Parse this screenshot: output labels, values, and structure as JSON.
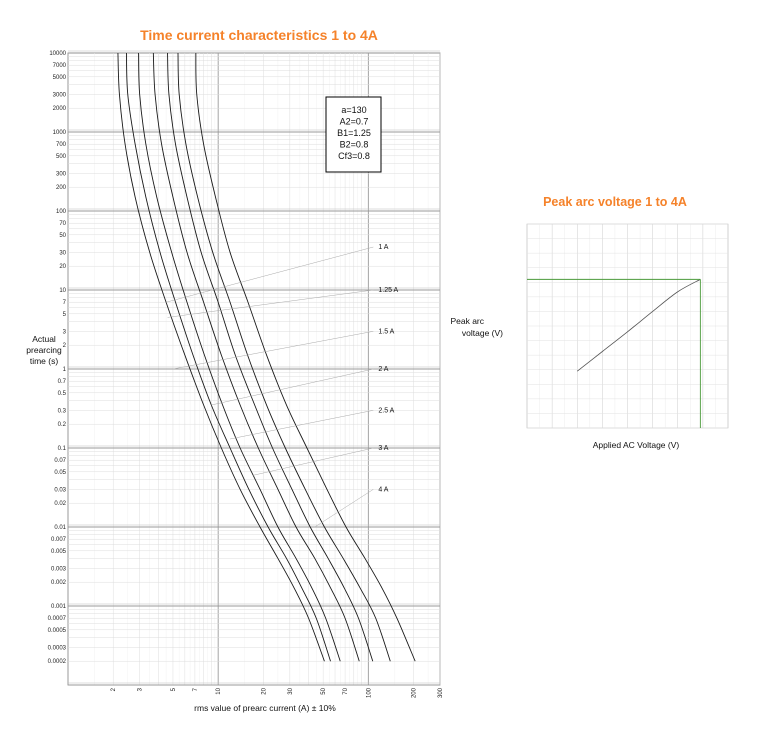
{
  "chart_data": [
    {
      "type": "line",
      "title": "Time current characteristics 1 to 4A",
      "xlabel": "rms value of prearc current (A) ± 10%",
      "ylabel": "Actual prearcing time (s)",
      "xscale": "log",
      "yscale": "log",
      "xlim": [
        1,
        300
      ],
      "ylim": [
        0.0001,
        10000
      ],
      "grid": true,
      "x_ticks": [
        "2",
        "3",
        "5",
        "7",
        "10",
        "20",
        "30",
        "50",
        "70",
        "100",
        "200",
        "300"
      ],
      "y_ticks": [
        "10000",
        "7000",
        "5000",
        "3000",
        "2000",
        "1000",
        "700",
        "500",
        "300",
        "200",
        "100",
        "70",
        "50",
        "30",
        "20",
        "10",
        "7",
        "5",
        "3",
        "2",
        "1",
        "0.7",
        "0.5",
        "0.3",
        "0.2",
        "0.1",
        "0.07",
        "0.05",
        "0.03",
        "0.02",
        "0.01",
        "0.007",
        "0.005",
        "0.003",
        "0.002",
        "0.001",
        "0.0007",
        "0.0005",
        "0.0003",
        "0.0002"
      ],
      "annotation": [
        "a=130",
        "A2=0.7",
        "B1=1.25",
        "B2=0.8",
        "Cf3=0.8"
      ],
      "series": [
        {
          "name": "1 A",
          "x": [
            2.15,
            2.2,
            2.4,
            2.8,
            3.5,
            4.5,
            6,
            8,
            10.5,
            14,
            19,
            25,
            32,
            40,
            51
          ],
          "y": [
            10000,
            3000,
            700,
            150,
            30,
            7,
            1.5,
            0.35,
            0.1,
            0.03,
            0.01,
            0.004,
            0.0017,
            0.0007,
            0.0002
          ]
        },
        {
          "name": "1.25 A",
          "x": [
            2.45,
            2.5,
            2.8,
            3.3,
            4.1,
            5.2,
            6.8,
            9,
            12,
            16,
            21.5,
            28.5,
            36,
            45,
            56
          ],
          "y": [
            10000,
            3000,
            700,
            150,
            30,
            7,
            1.5,
            0.35,
            0.1,
            0.03,
            0.01,
            0.004,
            0.0017,
            0.0007,
            0.0002
          ]
        },
        {
          "name": "1.5 A",
          "x": [
            2.95,
            3.0,
            3.3,
            3.9,
            4.9,
            6.2,
            8.1,
            10.7,
            14,
            19,
            25,
            33,
            42,
            52,
            65
          ],
          "y": [
            10000,
            3000,
            700,
            150,
            30,
            7,
            1.5,
            0.35,
            0.1,
            0.03,
            0.01,
            0.004,
            0.0017,
            0.0007,
            0.0002
          ]
        },
        {
          "name": "2 A",
          "x": [
            3.7,
            3.8,
            4.2,
            5,
            6.2,
            8,
            10.5,
            14,
            18.5,
            25,
            33,
            44,
            56,
            70,
            87
          ],
          "y": [
            10000,
            3000,
            700,
            150,
            30,
            7,
            1.5,
            0.35,
            0.1,
            0.03,
            0.01,
            0.004,
            0.0017,
            0.0007,
            0.0002
          ]
        },
        {
          "name": "2.5 A",
          "x": [
            4.6,
            4.7,
            5.2,
            6.2,
            7.7,
            10,
            13,
            17.5,
            23,
            31,
            41,
            54,
            69,
            86,
            107
          ],
          "y": [
            10000,
            3000,
            700,
            150,
            30,
            7,
            1.5,
            0.35,
            0.1,
            0.03,
            0.01,
            0.004,
            0.0017,
            0.0007,
            0.0002
          ]
        },
        {
          "name": "3 A",
          "x": [
            5.4,
            5.5,
            6.1,
            7.3,
            9.2,
            12,
            15.7,
            21,
            28,
            38,
            51,
            68,
            88,
            112,
            140
          ],
          "y": [
            10000,
            3000,
            700,
            150,
            30,
            7,
            1.5,
            0.35,
            0.1,
            0.03,
            0.01,
            0.004,
            0.0017,
            0.0007,
            0.0002
          ]
        },
        {
          "name": "4 A",
          "x": [
            7.1,
            7.2,
            8.0,
            9.6,
            12,
            15.8,
            21,
            28.5,
            39,
            53,
            71,
            95,
            123,
            155,
            205
          ],
          "y": [
            10000,
            3000,
            700,
            150,
            30,
            7,
            1.5,
            0.35,
            0.1,
            0.03,
            0.01,
            0.004,
            0.0017,
            0.0007,
            0.0002
          ]
        }
      ],
      "curve_label_lines": [
        {
          "label": "1 A",
          "from": [
            4.5,
            7
          ],
          "to": [
            108,
            35
          ]
        },
        {
          "label": "1.25 A",
          "from": [
            4.6,
            4.5
          ],
          "to": [
            108,
            10
          ]
        },
        {
          "label": "1.5 A",
          "from": [
            5,
            1.0
          ],
          "to": [
            108,
            3
          ]
        },
        {
          "label": "2 A",
          "from": [
            9,
            0.35
          ],
          "to": [
            108,
            1
          ]
        },
        {
          "label": "2.5 A",
          "from": [
            12,
            0.13
          ],
          "to": [
            108,
            0.3
          ]
        },
        {
          "label": "3 A",
          "from": [
            17,
            0.045
          ],
          "to": [
            108,
            0.1
          ]
        },
        {
          "label": "4 A",
          "from": [
            44,
            0.01
          ],
          "to": [
            108,
            0.03
          ]
        }
      ]
    },
    {
      "type": "line",
      "title": "Peak arc voltage 1 to 4A",
      "xlabel": "Applied AC Voltage (V)",
      "ylabel": "Peak arc voltage (V)",
      "xlim": [
        0,
        800
      ],
      "ylim": [
        0,
        2800
      ],
      "grid": true,
      "series": [
        {
          "x": [
            200,
            300,
            400,
            500,
            600,
            690
          ],
          "y": [
            780,
            1050,
            1320,
            1600,
            1870,
            2040
          ]
        }
      ],
      "reference_lines": {
        "x": 690,
        "y": 2040
      }
    }
  ],
  "colors": {
    "title": "#f5822a",
    "grid_major": "#9a9a9a",
    "grid_minor": "#dddddd",
    "curve": "#1a1a1a",
    "reference": "#4a9a3a"
  }
}
